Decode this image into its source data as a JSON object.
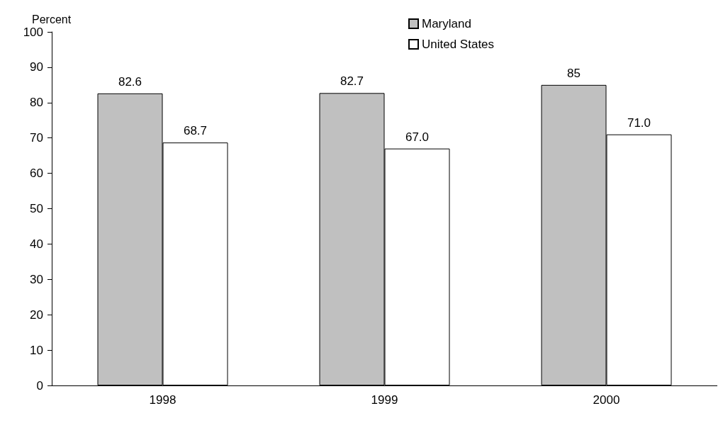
{
  "chart_data": {
    "type": "bar",
    "ylabel": "Percent",
    "categories": [
      "1998",
      "1999",
      "2000"
    ],
    "series": [
      {
        "name": "Maryland",
        "color": "#c0c0c0",
        "values": [
          82.6,
          82.7,
          85
        ],
        "value_labels": [
          "82.6",
          "82.7",
          "85"
        ]
      },
      {
        "name": "United States",
        "color": "#ffffff",
        "values": [
          68.7,
          67.0,
          71.0
        ],
        "value_labels": [
          "68.7",
          "67.0",
          "71.0"
        ]
      }
    ],
    "ylim": [
      0,
      100
    ],
    "yticks": [
      0,
      10,
      20,
      30,
      40,
      50,
      60,
      70,
      80,
      90,
      100
    ],
    "grid": false,
    "legend": "top right"
  }
}
